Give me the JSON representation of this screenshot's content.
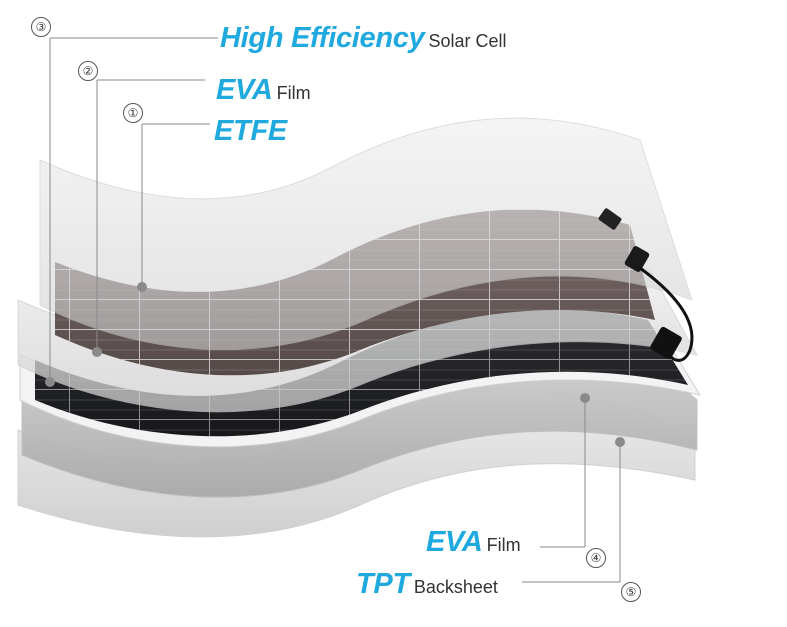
{
  "layers": [
    {
      "number": "③",
      "highlight": "High Efficiency",
      "suffix": "Solar Cell"
    },
    {
      "number": "②",
      "highlight": "EVA",
      "suffix": "Film"
    },
    {
      "number": "①",
      "highlight": "ETFE",
      "suffix": ""
    },
    {
      "number": "④",
      "highlight": "EVA",
      "suffix": "Film"
    },
    {
      "number": "⑤",
      "highlight": "TPT",
      "suffix": "Backsheet"
    }
  ],
  "colors": {
    "accent": "#1fa9de",
    "text": "#333333",
    "cell": "#2a2a2e",
    "film_light": "#dcdcdc",
    "film_dark": "#b8b8b8"
  }
}
